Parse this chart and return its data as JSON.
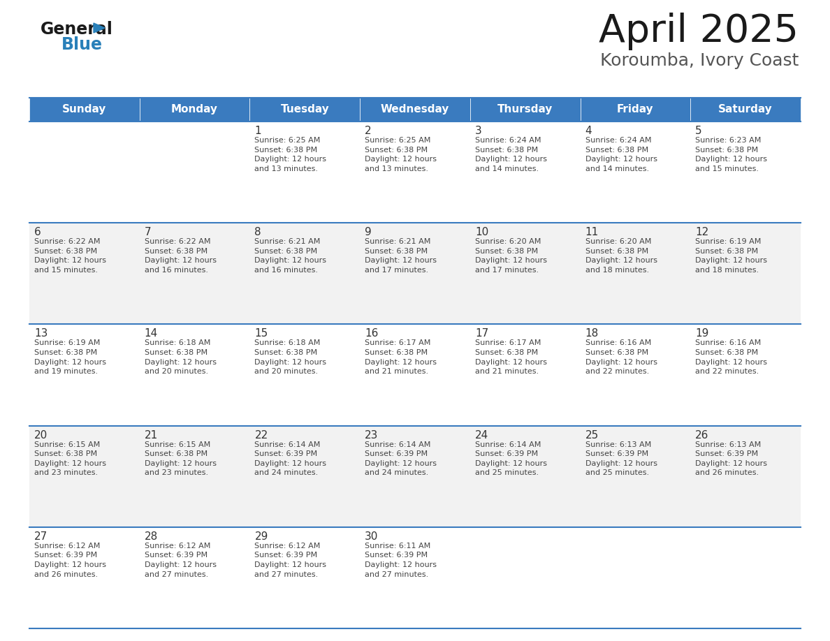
{
  "title": "April 2025",
  "subtitle": "Koroumba, Ivory Coast",
  "header_color": "#3a7bbf",
  "header_text_color": "#ffffff",
  "cell_bg_light": "#f2f2f2",
  "cell_bg_white": "#ffffff",
  "border_color": "#3a7bbf",
  "separator_color": "#cccccc",
  "day_headers": [
    "Sunday",
    "Monday",
    "Tuesday",
    "Wednesday",
    "Thursday",
    "Friday",
    "Saturday"
  ],
  "weeks": [
    [
      {
        "day": "",
        "info": ""
      },
      {
        "day": "",
        "info": ""
      },
      {
        "day": "1",
        "info": "Sunrise: 6:25 AM\nSunset: 6:38 PM\nDaylight: 12 hours\nand 13 minutes."
      },
      {
        "day": "2",
        "info": "Sunrise: 6:25 AM\nSunset: 6:38 PM\nDaylight: 12 hours\nand 13 minutes."
      },
      {
        "day": "3",
        "info": "Sunrise: 6:24 AM\nSunset: 6:38 PM\nDaylight: 12 hours\nand 14 minutes."
      },
      {
        "day": "4",
        "info": "Sunrise: 6:24 AM\nSunset: 6:38 PM\nDaylight: 12 hours\nand 14 minutes."
      },
      {
        "day": "5",
        "info": "Sunrise: 6:23 AM\nSunset: 6:38 PM\nDaylight: 12 hours\nand 15 minutes."
      }
    ],
    [
      {
        "day": "6",
        "info": "Sunrise: 6:22 AM\nSunset: 6:38 PM\nDaylight: 12 hours\nand 15 minutes."
      },
      {
        "day": "7",
        "info": "Sunrise: 6:22 AM\nSunset: 6:38 PM\nDaylight: 12 hours\nand 16 minutes."
      },
      {
        "day": "8",
        "info": "Sunrise: 6:21 AM\nSunset: 6:38 PM\nDaylight: 12 hours\nand 16 minutes."
      },
      {
        "day": "9",
        "info": "Sunrise: 6:21 AM\nSunset: 6:38 PM\nDaylight: 12 hours\nand 17 minutes."
      },
      {
        "day": "10",
        "info": "Sunrise: 6:20 AM\nSunset: 6:38 PM\nDaylight: 12 hours\nand 17 minutes."
      },
      {
        "day": "11",
        "info": "Sunrise: 6:20 AM\nSunset: 6:38 PM\nDaylight: 12 hours\nand 18 minutes."
      },
      {
        "day": "12",
        "info": "Sunrise: 6:19 AM\nSunset: 6:38 PM\nDaylight: 12 hours\nand 18 minutes."
      }
    ],
    [
      {
        "day": "13",
        "info": "Sunrise: 6:19 AM\nSunset: 6:38 PM\nDaylight: 12 hours\nand 19 minutes."
      },
      {
        "day": "14",
        "info": "Sunrise: 6:18 AM\nSunset: 6:38 PM\nDaylight: 12 hours\nand 20 minutes."
      },
      {
        "day": "15",
        "info": "Sunrise: 6:18 AM\nSunset: 6:38 PM\nDaylight: 12 hours\nand 20 minutes."
      },
      {
        "day": "16",
        "info": "Sunrise: 6:17 AM\nSunset: 6:38 PM\nDaylight: 12 hours\nand 21 minutes."
      },
      {
        "day": "17",
        "info": "Sunrise: 6:17 AM\nSunset: 6:38 PM\nDaylight: 12 hours\nand 21 minutes."
      },
      {
        "day": "18",
        "info": "Sunrise: 6:16 AM\nSunset: 6:38 PM\nDaylight: 12 hours\nand 22 minutes."
      },
      {
        "day": "19",
        "info": "Sunrise: 6:16 AM\nSunset: 6:38 PM\nDaylight: 12 hours\nand 22 minutes."
      }
    ],
    [
      {
        "day": "20",
        "info": "Sunrise: 6:15 AM\nSunset: 6:38 PM\nDaylight: 12 hours\nand 23 minutes."
      },
      {
        "day": "21",
        "info": "Sunrise: 6:15 AM\nSunset: 6:38 PM\nDaylight: 12 hours\nand 23 minutes."
      },
      {
        "day": "22",
        "info": "Sunrise: 6:14 AM\nSunset: 6:39 PM\nDaylight: 12 hours\nand 24 minutes."
      },
      {
        "day": "23",
        "info": "Sunrise: 6:14 AM\nSunset: 6:39 PM\nDaylight: 12 hours\nand 24 minutes."
      },
      {
        "day": "24",
        "info": "Sunrise: 6:14 AM\nSunset: 6:39 PM\nDaylight: 12 hours\nand 25 minutes."
      },
      {
        "day": "25",
        "info": "Sunrise: 6:13 AM\nSunset: 6:39 PM\nDaylight: 12 hours\nand 25 minutes."
      },
      {
        "day": "26",
        "info": "Sunrise: 6:13 AM\nSunset: 6:39 PM\nDaylight: 12 hours\nand 26 minutes."
      }
    ],
    [
      {
        "day": "27",
        "info": "Sunrise: 6:12 AM\nSunset: 6:39 PM\nDaylight: 12 hours\nand 26 minutes."
      },
      {
        "day": "28",
        "info": "Sunrise: 6:12 AM\nSunset: 6:39 PM\nDaylight: 12 hours\nand 27 minutes."
      },
      {
        "day": "29",
        "info": "Sunrise: 6:12 AM\nSunset: 6:39 PM\nDaylight: 12 hours\nand 27 minutes."
      },
      {
        "day": "30",
        "info": "Sunrise: 6:11 AM\nSunset: 6:39 PM\nDaylight: 12 hours\nand 27 minutes."
      },
      {
        "day": "",
        "info": ""
      },
      {
        "day": "",
        "info": ""
      },
      {
        "day": "",
        "info": ""
      }
    ]
  ],
  "logo_color_general": "#1a1a1a",
  "logo_color_blue": "#2980b9",
  "logo_triangle_color": "#2980b9",
  "title_fontsize": 40,
  "subtitle_fontsize": 18,
  "header_fontsize": 11,
  "day_num_fontsize": 11,
  "info_fontsize": 8
}
